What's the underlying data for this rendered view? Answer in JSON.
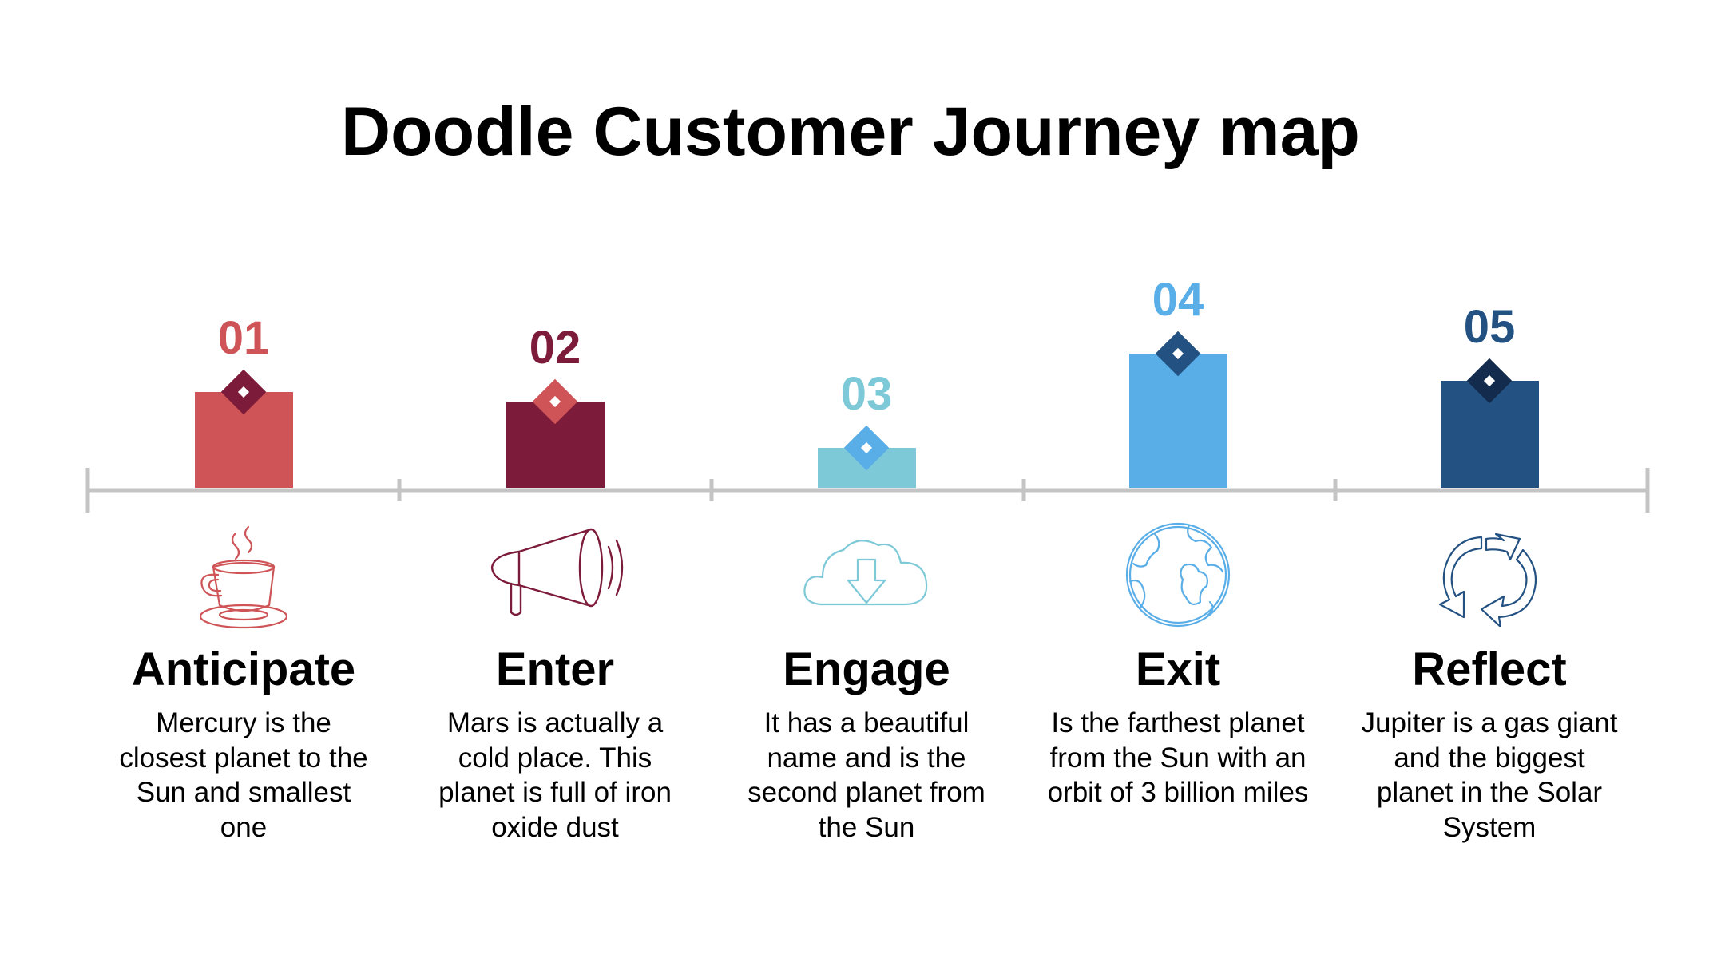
{
  "title": "Doodle Customer Journey map",
  "stages": [
    {
      "number": "01",
      "title": "Anticipate",
      "description": "Mercury is the closest planet to the Sun and smallest one",
      "icon": "coffee-cup-icon",
      "color": "#cf5457",
      "diamond_color": "#7d1b3a",
      "level": 0.3
    },
    {
      "number": "02",
      "title": "Enter",
      "description": "Mars is actually a cold place. This planet is full of iron oxide dust",
      "icon": "megaphone-icon",
      "color": "#7d1b3a",
      "diamond_color": "#cf5457",
      "level": 0.27
    },
    {
      "number": "03",
      "title": "Engage",
      "description": "It has a beautiful name and is the second planet from the Sun",
      "icon": "cloud-download-icon",
      "color": "#7ec9d8",
      "diamond_color": "#5aaee8",
      "level": 0.125
    },
    {
      "number": "04",
      "title": "Exit",
      "description": "Is the farthest planet from the Sun with an orbit of 3 billion miles",
      "icon": "globe-icon",
      "color": "#5aaee8",
      "diamond_color": "#235182",
      "level": 0.42
    },
    {
      "number": "05",
      "title": "Reflect",
      "description": "Jupiter is  a gas giant and the biggest planet in the Solar System",
      "icon": "recycle-arrows-icon",
      "color": "#235182",
      "diamond_color": "#132c4e",
      "level": 0.335
    }
  ]
}
